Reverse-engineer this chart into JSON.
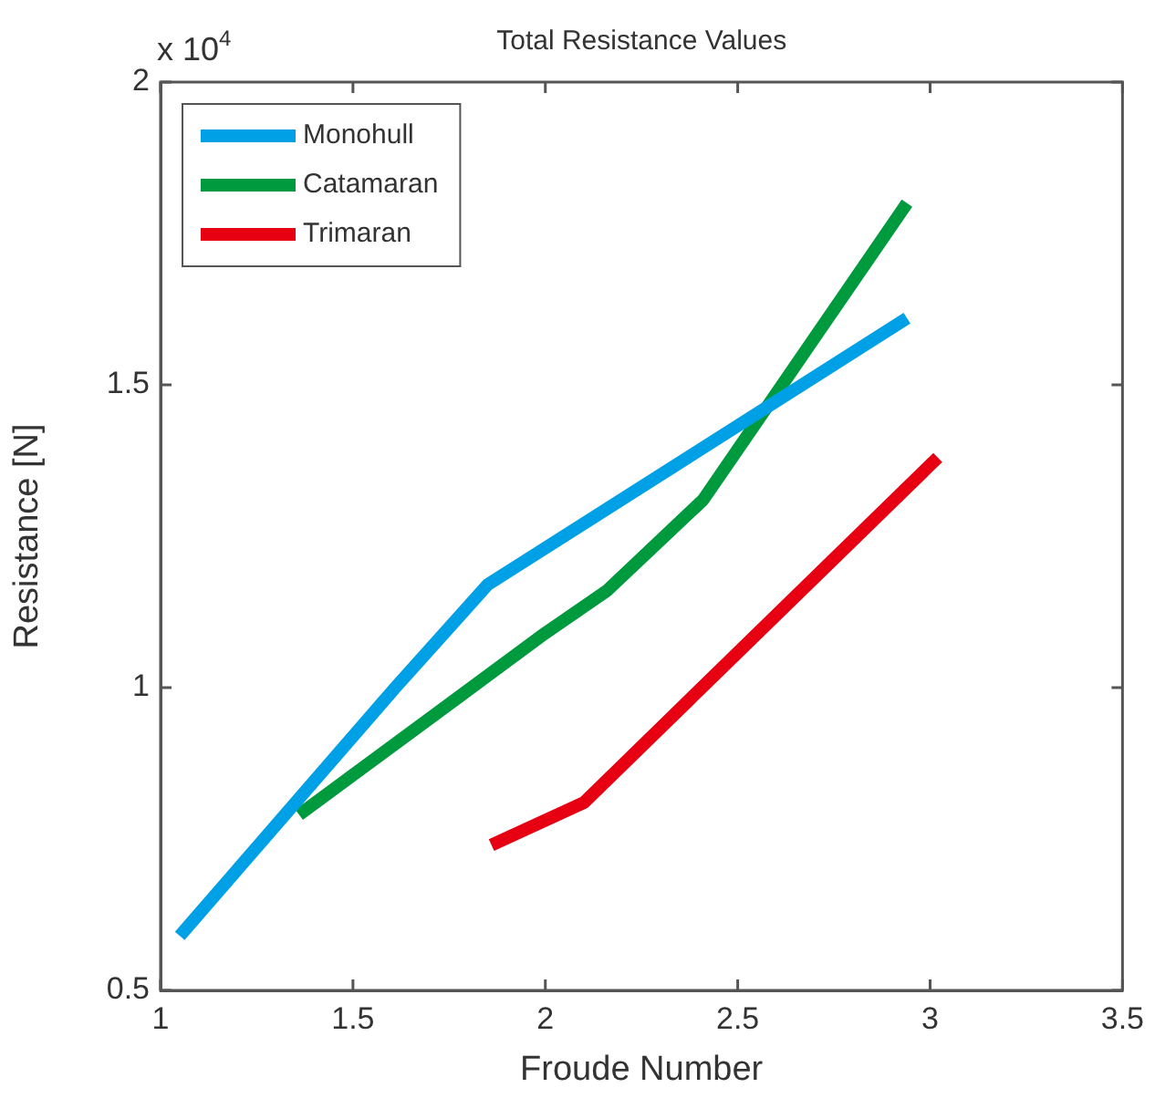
{
  "chart_data": {
    "type": "line",
    "title": "Total Resistance Values",
    "xlabel": "Froude Number",
    "ylabel": "Resistance [N]",
    "annotations": [
      "x 10$^{4}$"
    ],
    "xlim": [
      1,
      3.5
    ],
    "xticks": [
      1,
      1.5,
      2,
      2.5,
      3,
      3.5
    ],
    "ylim": [
      0.5,
      2
    ],
    "yticks": [
      0.5,
      1,
      1.5,
      2
    ],
    "grid": false,
    "legend": "top left",
    "marker": "none",
    "line_style": "solid",
    "series": [
      {
        "name": "Monohull",
        "color": "#00a0e6",
        "x": [
          1.05,
          1.61,
          1.85,
          2.94
        ],
        "values": [
          0.59,
          1.0,
          1.17,
          1.61
        ]
      },
      {
        "name": "Catamaran",
        "color": "#009a3e",
        "x": [
          1.36,
          2.0,
          2.16,
          2.41,
          2.94
        ],
        "values": [
          0.79,
          1.09,
          1.16,
          1.31,
          1.8
        ]
      },
      {
        "name": "Trimaran",
        "color": "#e60012",
        "x": [
          1.86,
          2.1,
          3.02
        ],
        "values": [
          0.74,
          0.81,
          1.38
        ]
      }
    ]
  }
}
